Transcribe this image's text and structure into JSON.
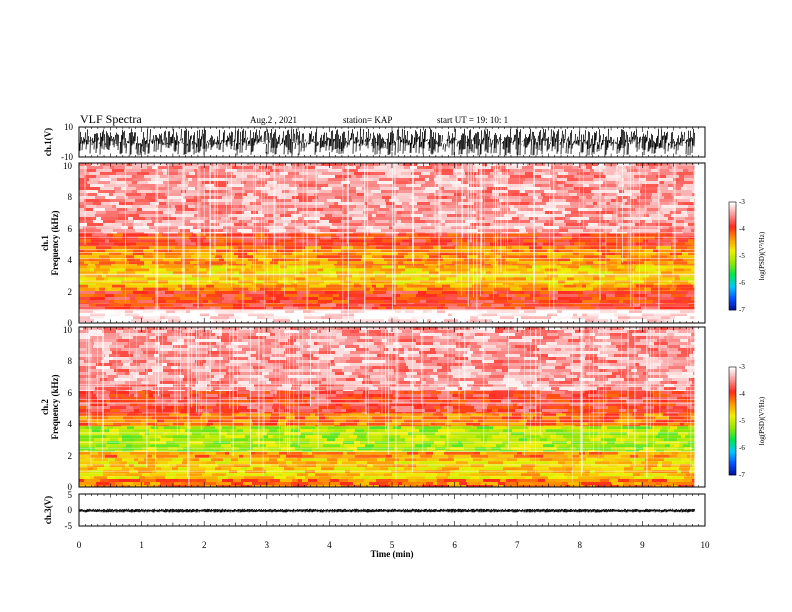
{
  "header": {
    "title": "VLF Spectra",
    "date": "Aug.2  , 2021",
    "station": "station= KAP",
    "start_ut": "start  UT  =    19: 10: 1"
  },
  "colorbar": {
    "label": "log(PSD)(V²/Hz)",
    "ticks": [
      "-3",
      "-4",
      "-5",
      "-6",
      "-7"
    ],
    "range": [
      -7,
      -3
    ],
    "colors": [
      "#000a8c",
      "#0050ff",
      "#00c8ff",
      "#00e650",
      "#96e600",
      "#f0f000",
      "#ff9600",
      "#ff2a1e",
      "#fa9696",
      "#ffffff"
    ]
  },
  "chart_data": [
    {
      "type": "line",
      "title": "",
      "ylabel": "ch.1(V)",
      "xlabel": "",
      "xlim": [
        0,
        10
      ],
      "ylim": [
        -10,
        10
      ],
      "y_ticks": [
        "10",
        "-10"
      ],
      "description_values": {
        "amplitude_range": [
          -9,
          9
        ],
        "data_end_min": 9.83
      }
    },
    {
      "type": "heatmap",
      "title": "",
      "ylabel": "ch.1\nFrequency  (kHz)",
      "xlim": [
        0,
        10
      ],
      "ylim": [
        0,
        10
      ],
      "y_ticks": [
        "0",
        "2",
        "4",
        "6",
        "8",
        "10"
      ],
      "bands_kHz": [
        {
          "range": [
            0,
            0.8
          ],
          "log_psd": -3.0
        },
        {
          "range": [
            0.8,
            1.2
          ],
          "log_psd": -3.8
        },
        {
          "range": [
            1.2,
            2.0
          ],
          "log_psd": -3.9
        },
        {
          "range": [
            2.0,
            2.4
          ],
          "log_psd": -4.3
        },
        {
          "range": [
            2.4,
            3.6
          ],
          "log_psd": -4.6
        },
        {
          "range": [
            3.6,
            4.8
          ],
          "log_psd": -4.3
        },
        {
          "range": [
            4.8,
            5.6
          ],
          "log_psd": -3.9
        },
        {
          "range": [
            5.6,
            10
          ],
          "log_psd": -3.4
        }
      ]
    },
    {
      "type": "heatmap",
      "title": "",
      "ylabel": "ch.2\nFrequency  (kHz)",
      "xlim": [
        0,
        10
      ],
      "ylim": [
        0,
        10
      ],
      "y_ticks": [
        "0",
        "2",
        "4",
        "6",
        "8",
        "10"
      ],
      "bands_kHz": [
        {
          "range": [
            0,
            0.5
          ],
          "log_psd": -4.2
        },
        {
          "range": [
            0.5,
            1.8
          ],
          "log_psd": -4.6
        },
        {
          "range": [
            1.8,
            2.2
          ],
          "log_psd": -4.3
        },
        {
          "range": [
            2.2,
            3.8
          ],
          "log_psd": -5.1
        },
        {
          "range": [
            3.8,
            4.6
          ],
          "log_psd": -4.2
        },
        {
          "range": [
            4.6,
            6.0
          ],
          "log_psd": -3.8
        },
        {
          "range": [
            6.0,
            10
          ],
          "log_psd": -3.4
        }
      ]
    },
    {
      "type": "line",
      "title": "",
      "ylabel": "ch.3(V)",
      "xlabel": "Time  (min)",
      "xlim": [
        0,
        10
      ],
      "ylim": [
        -5,
        5
      ],
      "y_ticks": [
        "5",
        "0",
        "-5"
      ],
      "x_ticks": [
        "0",
        "1",
        "2",
        "3",
        "4",
        "5",
        "6",
        "7",
        "8",
        "9",
        "10"
      ],
      "description_values": {
        "amplitude_range": [
          -0.8,
          0.4
        ],
        "data_end_min": 9.83
      }
    }
  ]
}
